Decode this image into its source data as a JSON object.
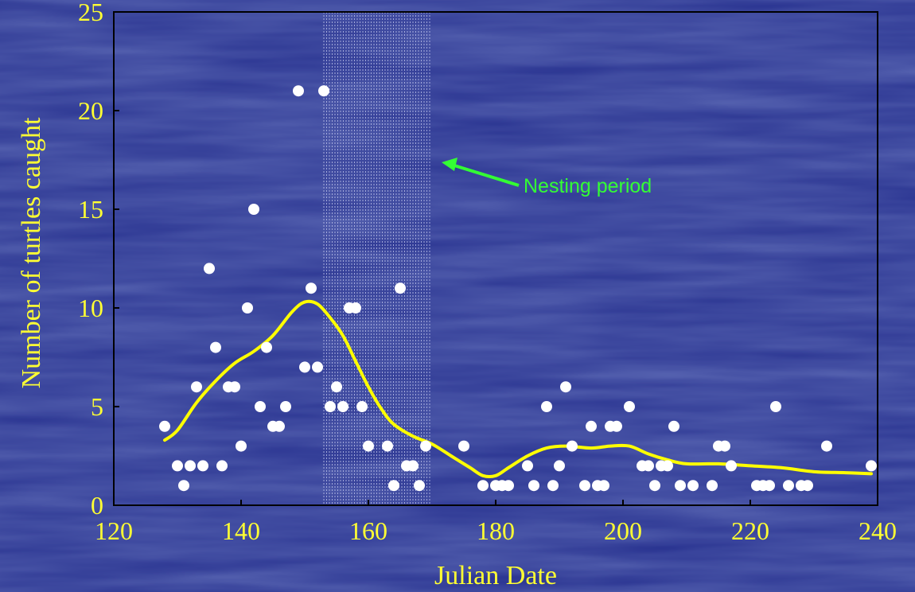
{
  "colors": {
    "background": "#27318f",
    "text": "#ffff33",
    "points": "#ffffff",
    "trend": "#ffff00",
    "annotation": "#33ff33",
    "axes": "#000000"
  },
  "chart_data": {
    "type": "scatter",
    "xlabel": "Julian Date",
    "ylabel": "Number of turtles caught",
    "xlim": [
      120,
      240
    ],
    "ylim": [
      0,
      25
    ],
    "xticks": [
      120,
      140,
      160,
      180,
      200,
      220,
      240
    ],
    "yticks": [
      0,
      5,
      10,
      15,
      20,
      25
    ],
    "grid": false,
    "shaded_region": {
      "label": "Nesting period",
      "x_start": 153,
      "x_end": 170
    },
    "annotation": {
      "text": "Nesting period",
      "points_to": "shaded_region"
    },
    "series": [
      {
        "type": "scatter",
        "points": [
          [
            128,
            4
          ],
          [
            130,
            2
          ],
          [
            131,
            1
          ],
          [
            132,
            2
          ],
          [
            133,
            6
          ],
          [
            134,
            2
          ],
          [
            135,
            12
          ],
          [
            136,
            8
          ],
          [
            137,
            2
          ],
          [
            138,
            6
          ],
          [
            139,
            6
          ],
          [
            140,
            3
          ],
          [
            141,
            10
          ],
          [
            142,
            15
          ],
          [
            143,
            5
          ],
          [
            144,
            8
          ],
          [
            145,
            4
          ],
          [
            146,
            4
          ],
          [
            147,
            5
          ],
          [
            149,
            21
          ],
          [
            150,
            7
          ],
          [
            151,
            11
          ],
          [
            152,
            7
          ],
          [
            153,
            21
          ],
          [
            154,
            5
          ],
          [
            155,
            6
          ],
          [
            156,
            5
          ],
          [
            157,
            10
          ],
          [
            158,
            10
          ],
          [
            159,
            5
          ],
          [
            160,
            3
          ],
          [
            163,
            3
          ],
          [
            164,
            1
          ],
          [
            165,
            11
          ],
          [
            166,
            2
          ],
          [
            167,
            2
          ],
          [
            168,
            1
          ],
          [
            169,
            3
          ],
          [
            175,
            3
          ],
          [
            178,
            1
          ],
          [
            180,
            1
          ],
          [
            181,
            1
          ],
          [
            182,
            1
          ],
          [
            185,
            2
          ],
          [
            186,
            1
          ],
          [
            188,
            5
          ],
          [
            189,
            1
          ],
          [
            190,
            2
          ],
          [
            191,
            6
          ],
          [
            192,
            3
          ],
          [
            194,
            1
          ],
          [
            195,
            4
          ],
          [
            196,
            1
          ],
          [
            197,
            1
          ],
          [
            198,
            4
          ],
          [
            199,
            4
          ],
          [
            201,
            5
          ],
          [
            203,
            2
          ],
          [
            204,
            2
          ],
          [
            205,
            1
          ],
          [
            206,
            2
          ],
          [
            207,
            2
          ],
          [
            208,
            4
          ],
          [
            209,
            1
          ],
          [
            211,
            1
          ],
          [
            214,
            1
          ],
          [
            215,
            3
          ],
          [
            216,
            3
          ],
          [
            217,
            2
          ],
          [
            221,
            1
          ],
          [
            222,
            1
          ],
          [
            223,
            1
          ],
          [
            224,
            5
          ],
          [
            226,
            1
          ],
          [
            228,
            1
          ],
          [
            229,
            1
          ],
          [
            232,
            3
          ],
          [
            239,
            2
          ]
        ]
      },
      {
        "type": "line",
        "smooth": true,
        "points": [
          [
            128,
            3.3
          ],
          [
            130,
            3.8
          ],
          [
            133,
            5.2
          ],
          [
            136,
            6.3
          ],
          [
            139,
            7.2
          ],
          [
            142,
            7.8
          ],
          [
            145,
            8.6
          ],
          [
            148,
            9.8
          ],
          [
            150,
            10.3
          ],
          [
            152,
            10.2
          ],
          [
            154,
            9.5
          ],
          [
            156,
            8.6
          ],
          [
            158,
            7.3
          ],
          [
            160,
            6.0
          ],
          [
            162,
            4.9
          ],
          [
            164,
            4.1
          ],
          [
            167,
            3.5
          ],
          [
            170,
            3.1
          ],
          [
            173,
            2.5
          ],
          [
            176,
            1.9
          ],
          [
            178,
            1.5
          ],
          [
            180,
            1.5
          ],
          [
            182,
            1.9
          ],
          [
            185,
            2.5
          ],
          [
            188,
            2.9
          ],
          [
            191,
            3.0
          ],
          [
            195,
            2.9
          ],
          [
            198,
            3.0
          ],
          [
            201,
            3.0
          ],
          [
            204,
            2.6
          ],
          [
            207,
            2.3
          ],
          [
            210,
            2.1
          ],
          [
            215,
            2.1
          ],
          [
            220,
            2.0
          ],
          [
            225,
            1.9
          ],
          [
            230,
            1.7
          ],
          [
            235,
            1.65
          ],
          [
            239,
            1.6
          ]
        ]
      }
    ]
  }
}
